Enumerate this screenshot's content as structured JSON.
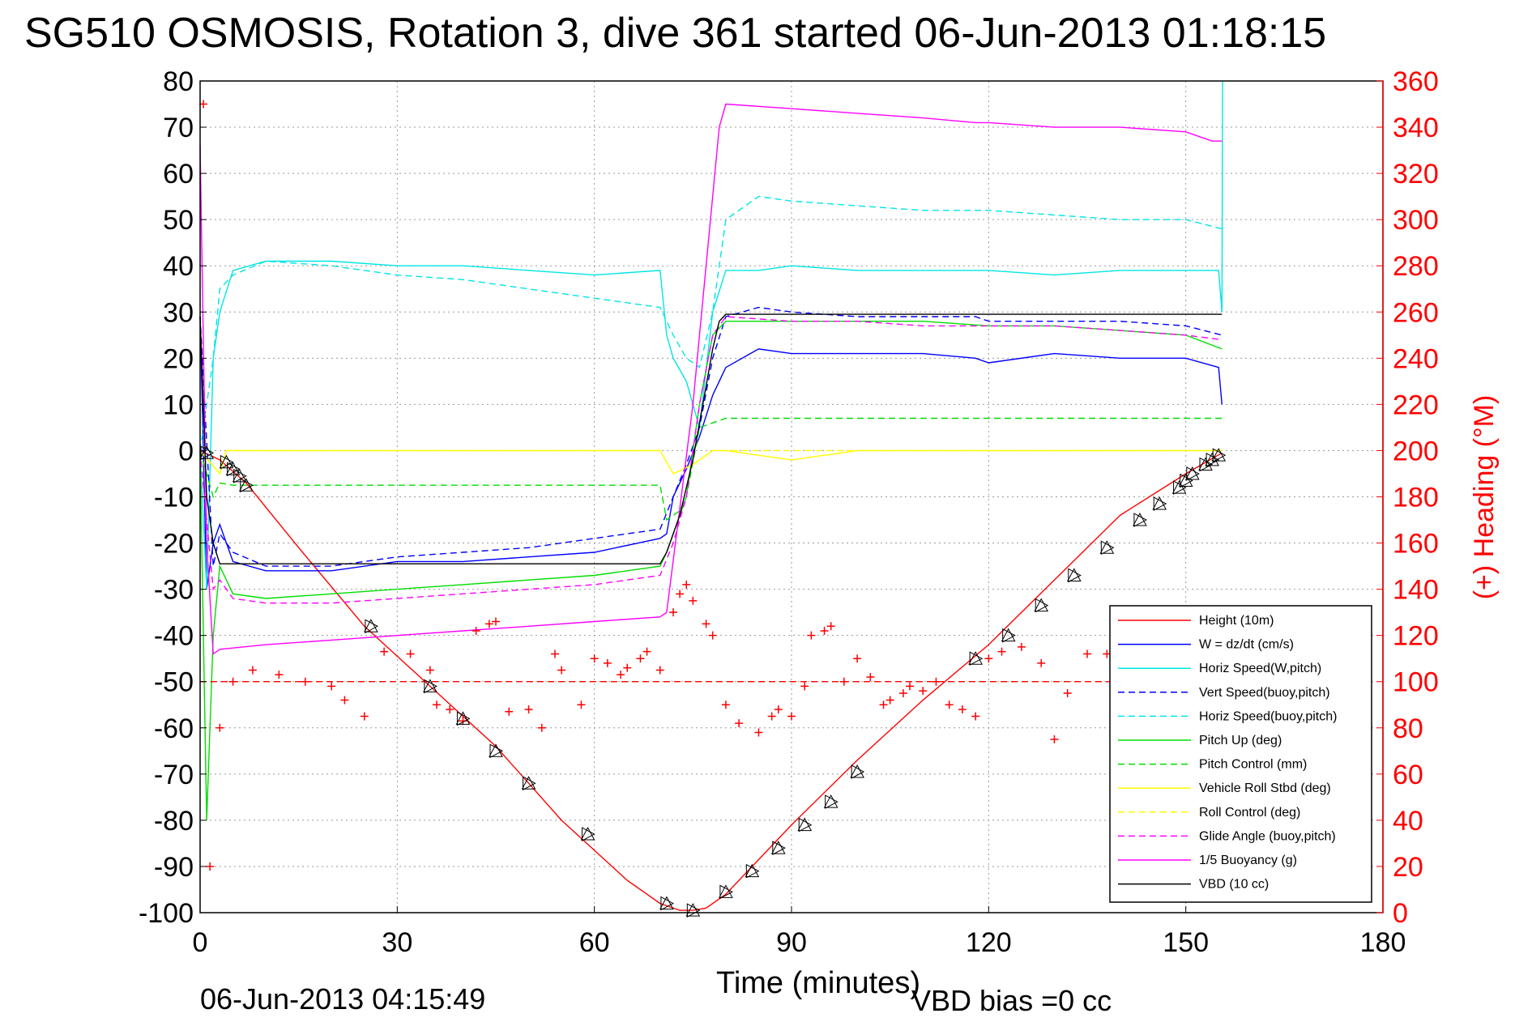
{
  "title": "SG510 OSMOSIS, Rotation 3, dive 361 started 06-Jun-2013 01:18:15",
  "footer": {
    "timestamp": "06-Jun-2013 04:15:49",
    "vbd_bias": "VBD bias =0 cc"
  },
  "chart_data": {
    "type": "line",
    "title": "SG510 OSMOSIS, Rotation 3, dive 361 started 06-Jun-2013 01:18:15",
    "xlabel": "Time (minutes)",
    "ylabel": "",
    "y2label": "(+) Heading (°M)",
    "xlim": [
      0,
      180
    ],
    "ylim": [
      -100,
      80
    ],
    "y2lim": [
      0,
      360
    ],
    "xticks": [
      "0",
      "30",
      "60",
      "90",
      "120",
      "150",
      "180"
    ],
    "yticks": [
      "80",
      "70",
      "60",
      "50",
      "40",
      "30",
      "20",
      "10",
      "0",
      "-10",
      "-20",
      "-30",
      "-40",
      "-50",
      "-60",
      "-70",
      "-80",
      "-90",
      "-100"
    ],
    "y2ticks": [
      "360",
      "340",
      "320",
      "300",
      "280",
      "260",
      "240",
      "220",
      "200",
      "180",
      "160",
      "140",
      "120",
      "100",
      "80",
      "60",
      "40",
      "20",
      "0"
    ],
    "grid": true,
    "legend_position": "lower-right",
    "colors": {
      "red": "#ff0000",
      "blue": "#0000ff",
      "cyan": "#00e5e5",
      "green": "#00dd00",
      "yellow": "#ffff00",
      "magenta": "#ff00ff",
      "black": "#000000"
    },
    "series": [
      {
        "name": "Height (10m)",
        "color": "#ff0000",
        "dash": false,
        "x": [
          0,
          3,
          7,
          15,
          25,
          35,
          45,
          55,
          65,
          70,
          73,
          75,
          77,
          80,
          90,
          100,
          110,
          120,
          130,
          140,
          150,
          155.5
        ],
        "y": [
          0,
          -2,
          -7,
          -21,
          -38,
          -51,
          -64,
          -80,
          -93,
          -98,
          -99.5,
          -99.5,
          -99,
          -96,
          -81,
          -67,
          -54,
          -42,
          -28,
          -14,
          -5,
          -0.5
        ]
      },
      {
        "name": "W = dz/dt (cm/s)",
        "color": "#0000ff",
        "dash": false,
        "x": [
          0,
          1,
          2,
          3,
          5,
          10,
          20,
          30,
          40,
          50,
          60,
          70,
          71,
          72,
          74,
          76,
          78,
          80,
          85,
          90,
          100,
          110,
          118,
          120,
          130,
          140,
          150,
          155,
          155.5
        ],
        "y": [
          29,
          -30,
          -20,
          -16,
          -24,
          -26,
          -26,
          -24,
          -24,
          -23,
          -22,
          -19,
          -18,
          -10,
          -4,
          3,
          12,
          18,
          22,
          21,
          21,
          21,
          20,
          19,
          21,
          20,
          20,
          18,
          10
        ]
      },
      {
        "name": "Horiz Speed(W,pitch)",
        "color": "#00e5e5",
        "dash": false,
        "x": [
          0,
          1,
          2,
          3,
          5,
          10,
          20,
          30,
          40,
          50,
          60,
          70,
          71,
          72,
          74,
          76,
          78,
          80,
          85,
          90,
          100,
          110,
          120,
          130,
          140,
          150,
          155,
          155.5,
          155.6
        ],
        "y": [
          0,
          -30,
          20,
          30,
          39,
          41,
          41,
          40,
          40,
          39,
          38,
          39,
          25,
          20,
          15,
          5,
          30,
          39,
          39,
          40,
          39,
          39,
          39,
          38,
          39,
          39,
          39,
          30,
          80
        ]
      },
      {
        "name": "Vert Speed(buoy,pitch)",
        "color": "#0000ff",
        "dash": true,
        "x": [
          0,
          2,
          3,
          5,
          10,
          20,
          30,
          40,
          50,
          60,
          70,
          72,
          74,
          76,
          78,
          80,
          85,
          90,
          100,
          110,
          118,
          120,
          130,
          140,
          150,
          155.5
        ],
        "y": [
          29,
          -25,
          -18,
          -22,
          -25,
          -25,
          -23,
          -22,
          -21,
          -19,
          -17,
          -10,
          -3,
          5,
          20,
          29,
          31,
          30,
          29,
          29,
          29,
          28,
          28,
          28,
          27,
          25
        ]
      },
      {
        "name": "Horiz Speed(buoy,pitch)",
        "color": "#00e5e5",
        "dash": true,
        "x": [
          0,
          2,
          3,
          5,
          10,
          20,
          30,
          40,
          50,
          60,
          70,
          72,
          74,
          76,
          78,
          80,
          85,
          90,
          100,
          110,
          120,
          130,
          140,
          150,
          155.5
        ],
        "y": [
          0,
          20,
          35,
          38,
          41,
          40,
          38,
          37,
          35,
          33,
          31,
          25,
          20,
          18,
          30,
          50,
          55,
          54,
          53,
          52,
          52,
          51,
          50,
          50,
          48
        ]
      },
      {
        "name": "Pitch Up (deg)",
        "color": "#00dd00",
        "dash": false,
        "x": [
          0,
          1,
          2,
          3,
          5,
          10,
          20,
          30,
          40,
          50,
          60,
          70,
          71,
          72,
          74,
          76,
          78,
          80,
          85,
          90,
          100,
          110,
          120,
          130,
          140,
          150,
          155.5
        ],
        "y": [
          0,
          -80,
          -40,
          -25,
          -31,
          -32,
          -31,
          -30,
          -29,
          -28,
          -27,
          -25,
          -22,
          -18,
          -10,
          10,
          25,
          28,
          28,
          28,
          28,
          28,
          27,
          27,
          26,
          25,
          22
        ]
      },
      {
        "name": "Pitch Control (mm)",
        "color": "#00dd00",
        "dash": true,
        "x": [
          0,
          2,
          3,
          5,
          70,
          71,
          72,
          73,
          74,
          76,
          78,
          80,
          90,
          100,
          120,
          150,
          155.5
        ],
        "y": [
          0,
          -10,
          -7,
          -7.5,
          -7.5,
          -15,
          -14,
          -13,
          -10,
          5,
          6,
          7,
          7,
          7,
          7,
          7,
          7
        ]
      },
      {
        "name": "Vehicle Roll Stbd (deg)",
        "color": "#ffff00",
        "dash": false,
        "x": [
          0,
          3,
          4,
          6,
          15,
          25,
          35,
          45,
          55,
          65,
          70,
          72,
          75,
          78,
          80,
          90,
          100,
          110,
          120,
          130,
          140,
          150,
          155.5
        ],
        "y": [
          0,
          -5,
          0,
          0,
          0,
          0,
          0,
          0,
          0,
          0,
          0,
          -5,
          -3,
          0,
          0,
          -2,
          0,
          0,
          0,
          0,
          0,
          0,
          0
        ]
      },
      {
        "name": "Roll Control (deg)",
        "color": "#ffff00",
        "dash": true,
        "x": [
          0,
          3,
          4,
          6,
          30,
          60,
          70,
          72,
          75,
          78,
          80,
          100,
          120,
          150,
          155.5
        ],
        "y": [
          0,
          -5,
          0,
          0,
          0,
          0,
          0,
          -5,
          -3,
          0,
          0,
          0,
          0,
          0,
          0
        ]
      },
      {
        "name": "Glide Angle (buoy,pitch)",
        "color": "#ff00ff",
        "dash": true,
        "x": [
          0,
          2,
          3,
          5,
          10,
          20,
          30,
          40,
          50,
          60,
          70,
          72,
          74,
          76,
          78,
          80,
          90,
          100,
          110,
          120,
          130,
          140,
          150,
          155.5
        ],
        "y": [
          0,
          -30,
          -28,
          -32,
          -33,
          -33,
          -32,
          -31,
          -30,
          -29,
          -27,
          -20,
          -10,
          10,
          25,
          29,
          28,
          28,
          27,
          27,
          27,
          26,
          25,
          24
        ]
      },
      {
        "name": "1/5 Buoyancy (g)",
        "color": "#ff00ff",
        "dash": false,
        "x": [
          0,
          1,
          2,
          3,
          10,
          20,
          30,
          40,
          50,
          60,
          70,
          71,
          75,
          79,
          80,
          90,
          100,
          110,
          118,
          120,
          130,
          140,
          150,
          154,
          155.5
        ],
        "y": [
          66,
          -20,
          -44,
          -43,
          -42,
          -41,
          -40,
          -39,
          -38,
          -37,
          -36,
          -35,
          10,
          70,
          75,
          74,
          73,
          72,
          71,
          71,
          70,
          70,
          69,
          67,
          67
        ]
      },
      {
        "name": "VBD (10 cc)",
        "color": "#000000",
        "dash": false,
        "x": [
          0,
          1,
          2,
          3,
          70,
          71,
          72,
          73,
          74,
          75,
          76,
          77,
          78,
          79,
          80,
          155.5
        ],
        "y": [
          29,
          -10,
          -20,
          -24.5,
          -24.5,
          -22,
          -18,
          -14,
          -8,
          -2,
          6,
          14,
          22,
          28,
          29.5,
          29.5
        ]
      },
      {
        "name": "(+) Heading (°M)",
        "color": "#ff0000",
        "marker": "plus",
        "axis": "y2",
        "x": [
          0.5,
          1.5,
          3,
          5,
          8,
          12,
          16,
          20,
          22,
          25,
          28,
          32,
          35,
          36,
          38,
          40,
          42,
          44,
          45,
          47,
          50,
          52,
          54,
          55,
          58,
          60,
          62,
          64,
          65,
          67,
          68,
          70,
          72,
          73,
          74,
          75,
          77,
          78,
          80,
          82,
          85,
          87,
          88,
          90,
          92,
          93,
          95,
          96,
          98,
          100,
          102,
          104,
          105,
          107,
          108,
          110,
          112,
          114,
          116,
          118,
          120,
          122,
          125,
          128,
          130,
          132,
          135,
          138,
          140,
          144,
          148,
          150,
          153,
          155
        ],
        "y": [
          350,
          20,
          80,
          100,
          105,
          103,
          100,
          98,
          92,
          85,
          113,
          112,
          105,
          90,
          88,
          83,
          122,
          125,
          126,
          87,
          88,
          80,
          112,
          105,
          90,
          110,
          108,
          103,
          106,
          110,
          113,
          105,
          130,
          138,
          142,
          135,
          125,
          120,
          90,
          82,
          78,
          85,
          88,
          85,
          98,
          120,
          122,
          124,
          100,
          110,
          102,
          90,
          92,
          95,
          98,
          96,
          100,
          90,
          88,
          85,
          110,
          113,
          115,
          108,
          75,
          95,
          112,
          112,
          95,
          90,
          60,
          80,
          62,
          92
        ]
      },
      {
        "name": "heading-dashed",
        "color": "#ff0000",
        "dash": true,
        "axis": "y2",
        "x": [
          0,
          155.5
        ],
        "y": [
          100,
          100
        ]
      },
      {
        "name": "Height markers",
        "color": "#000000",
        "marker": "triangle",
        "x": [
          1,
          4,
          5,
          6,
          7,
          26,
          35,
          40,
          45,
          50,
          59,
          71,
          75,
          80,
          84,
          88,
          92,
          96,
          100,
          118,
          123,
          128,
          133,
          138,
          143,
          146,
          149,
          150,
          151,
          153,
          154,
          155
        ],
        "y": [
          -0.5,
          -2.5,
          -4,
          -5.5,
          -7.5,
          -38,
          -51,
          -58,
          -65,
          -72,
          -83,
          -98,
          -99.5,
          -95.5,
          -91,
          -86,
          -81,
          -76,
          -69.5,
          -45,
          -40,
          -33.5,
          -27,
          -21,
          -15,
          -11.5,
          -8,
          -6.5,
          -5,
          -3,
          -2,
          -1
        ]
      }
    ],
    "legend": [
      {
        "label": "Height (10m)",
        "color": "#ff0000",
        "dash": false
      },
      {
        "label": "W = dz/dt (cm/s)",
        "color": "#0000ff",
        "dash": false
      },
      {
        "label": "Horiz Speed(W,pitch)",
        "color": "#00e5e5",
        "dash": false
      },
      {
        "label": "Vert Speed(buoy,pitch)",
        "color": "#0000ff",
        "dash": true
      },
      {
        "label": "Horiz Speed(buoy,pitch)",
        "color": "#00e5e5",
        "dash": true
      },
      {
        "label": "Pitch Up (deg)",
        "color": "#00dd00",
        "dash": false
      },
      {
        "label": "Pitch Control (mm)",
        "color": "#00dd00",
        "dash": true
      },
      {
        "label": "Vehicle Roll Stbd (deg)",
        "color": "#ffff00",
        "dash": false
      },
      {
        "label": "Roll Control (deg)",
        "color": "#ffff00",
        "dash": true
      },
      {
        "label": "Glide Angle (buoy,pitch)",
        "color": "#ff00ff",
        "dash": true
      },
      {
        "label": "1/5 Buoyancy (g)",
        "color": "#ff00ff",
        "dash": false
      },
      {
        "label": "VBD (10 cc)",
        "color": "#000000",
        "dash": false
      }
    ]
  }
}
